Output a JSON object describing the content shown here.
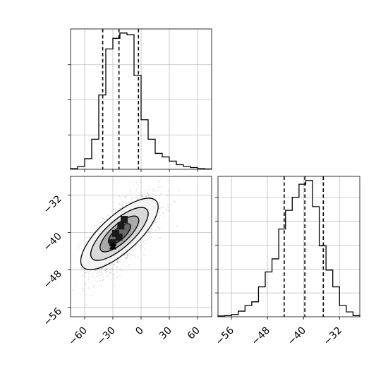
{
  "chart_data": [
    {
      "type": "histogram",
      "panel": "top-left",
      "variable": "x",
      "xlim": [
        -75,
        75
      ],
      "bins": [
        -75,
        -67.5,
        -60,
        -52.5,
        -45,
        -37.5,
        -30,
        -22.5,
        -15,
        -7.5,
        0,
        7.5,
        15,
        22.5,
        30,
        37.5,
        45,
        52.5,
        60,
        67.5,
        75
      ],
      "counts": [
        2,
        8,
        30,
        85,
        210,
        340,
        370,
        385,
        380,
        265,
        140,
        85,
        45,
        35,
        23,
        13,
        8,
        5,
        2,
        1
      ],
      "quantiles": [
        -40.8,
        -23.5,
        -2.8
      ],
      "xticks": [
        -60,
        -30,
        0,
        30,
        60
      ],
      "grid": true
    },
    {
      "type": "scatter-contour",
      "panel": "bottom-left",
      "xvar": "x",
      "yvar": "y",
      "xlim": [
        -75,
        75
      ],
      "ylim": [
        -58,
        -28
      ],
      "xticks": [
        -60,
        -30,
        0,
        30,
        60
      ],
      "xtick_labels": [
        "−60",
        "−30",
        "0",
        "30",
        "60"
      ],
      "yticks": [
        -56,
        -48,
        -40,
        -32
      ],
      "ytick_labels": [
        "−56",
        "−48",
        "−40",
        "−32"
      ],
      "mean": [
        -22,
        -40.5
      ],
      "correlation": 0.7,
      "grid": true
    },
    {
      "type": "histogram",
      "panel": "bottom-right",
      "variable": "y",
      "xlim": [
        -59,
        -27.5
      ],
      "bins": [
        -59,
        -57.5,
        -56,
        -54.5,
        -53,
        -51.5,
        -50,
        -48.5,
        -47,
        -45.5,
        -44,
        -42.5,
        -41,
        -39.5,
        -38,
        -36.5,
        -35,
        -33.5,
        -32,
        -30.5,
        -29,
        -27.5
      ],
      "counts": [
        2,
        3,
        6,
        15,
        30,
        40,
        80,
        120,
        155,
        235,
        285,
        320,
        355,
        365,
        295,
        190,
        125,
        80,
        30,
        13,
        3
      ],
      "quantiles": [
        -44.3,
        -39.7,
        -35.6
      ],
      "xticks": [
        -56,
        -48,
        -40,
        -32
      ],
      "xtick_labels": [
        "−56",
        "−48",
        "−40",
        "−32"
      ],
      "grid": true
    }
  ]
}
